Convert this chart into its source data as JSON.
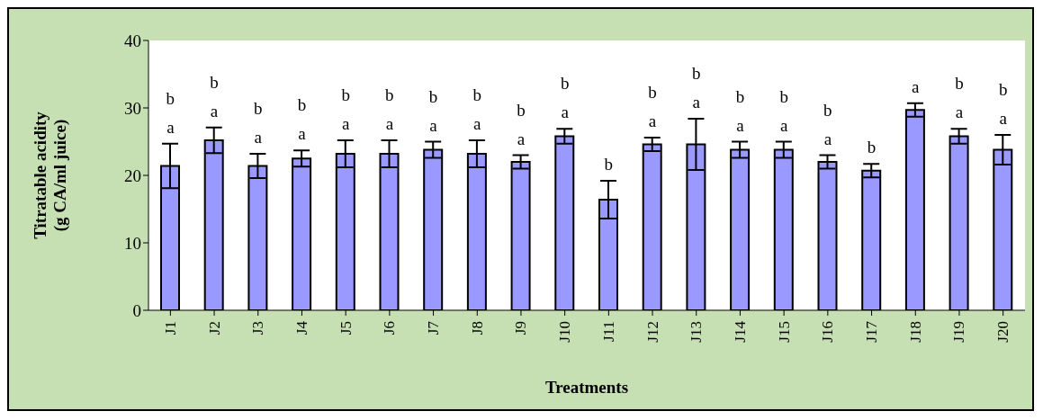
{
  "chart_data": {
    "type": "bar",
    "xlabel": "Treatments",
    "ylabel": "Titratable acidity\n(g CA/ml juice)",
    "categories": [
      "J1",
      "J2",
      "J3",
      "J4",
      "J5",
      "J6",
      "J7",
      "J8",
      "J9",
      "J10",
      "J11",
      "J12",
      "J13",
      "J14",
      "J15",
      "J16",
      "J17",
      "J18",
      "J19",
      "J20"
    ],
    "values": [
      21.4,
      25.2,
      21.4,
      22.5,
      23.2,
      23.2,
      23.8,
      23.2,
      22.0,
      25.8,
      16.4,
      24.6,
      24.6,
      23.8,
      23.8,
      22.0,
      20.7,
      29.7,
      25.8,
      23.8
    ],
    "errors": [
      3.3,
      1.9,
      1.8,
      1.2,
      2.0,
      2.0,
      1.2,
      2.0,
      1.0,
      1.1,
      2.8,
      1.0,
      3.8,
      1.2,
      1.2,
      1.0,
      1.0,
      1.0,
      1.1,
      2.2
    ],
    "color": "#9999ff",
    "ylim": [
      0,
      40
    ],
    "yticks": [
      0,
      10,
      20,
      30,
      40
    ],
    "annotations": [
      "b\na",
      "b\na",
      "b\na",
      "b\na",
      "b\na",
      "b\na",
      "b\na",
      "b\na",
      "b\na",
      "b\na",
      "b",
      "b\na",
      "b\na",
      "b\na",
      "b\na",
      "b\na",
      "b",
      "a",
      "b\na",
      "b\na"
    ]
  }
}
